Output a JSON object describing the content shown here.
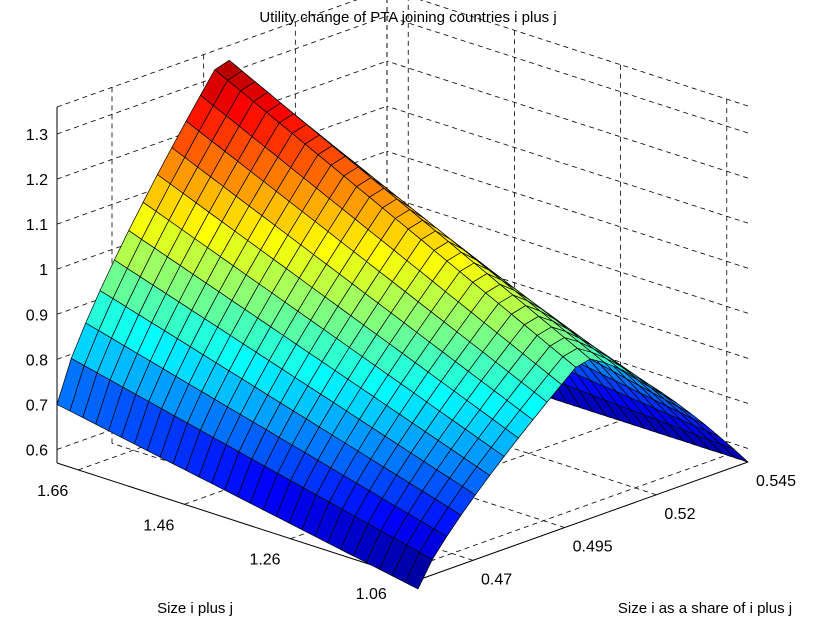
{
  "chart_data": {
    "type": "surface",
    "title": "Utility change of PTA joining countries i plus j",
    "xlabel": "Size i plus j",
    "ylabel": "Size i as a share of i plus j",
    "zlabel": "",
    "x_ticks": [
      "1.06",
      "1.26",
      "1.46",
      "1.66"
    ],
    "y_ticks": [
      "0.47",
      "0.495",
      "0.52",
      "0.545"
    ],
    "z_ticks": [
      "0.6",
      "0.7",
      "0.8",
      "0.9",
      "1",
      "1.1",
      "1.2",
      "1.3"
    ],
    "x_range": [
      1.02,
      1.7
    ],
    "y_range": [
      0.455,
      0.545
    ],
    "zlim": [
      0.57,
      1.36
    ],
    "grid": true,
    "colormap": "jet",
    "grid_size": {
      "x_points": 29,
      "y_points": 24
    },
    "shape": {
      "description": "Ridge along the share axis, peaking near share 0.50",
      "peak_share": 0.5,
      "value_at_large_size_peak": 1.34,
      "value_at_small_size_peak": 0.93,
      "value_at_large_size_low_share": 0.7,
      "value_at_small_size_low_share": 0.55,
      "value_at_share_0.545": 0.57
    }
  }
}
